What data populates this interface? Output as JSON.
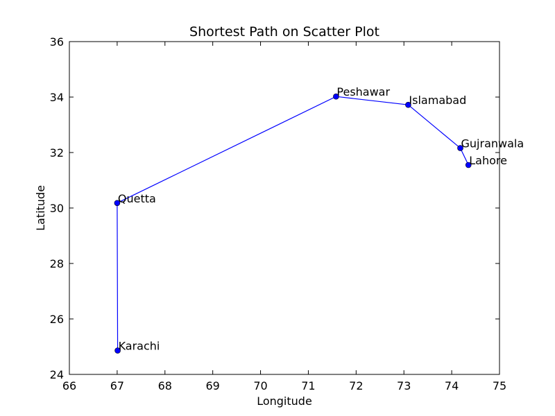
{
  "chart_data": {
    "type": "line",
    "title": "Shortest Path on Scatter Plot",
    "xlabel": "Longitude",
    "ylabel": "Latitude",
    "xlim": [
      66,
      75
    ],
    "ylim": [
      24,
      36
    ],
    "xticks": [
      66,
      67,
      68,
      69,
      70,
      71,
      72,
      73,
      74,
      75
    ],
    "yticks": [
      24,
      26,
      28,
      30,
      32,
      34,
      36
    ],
    "grid": false,
    "line_color": "#0000ff",
    "marker_color": "#0000ff",
    "points": [
      {
        "label": "Karachi",
        "x": 67.01,
        "y": 24.86
      },
      {
        "label": "Quetta",
        "x": 67.0,
        "y": 30.18
      },
      {
        "label": "Peshawar",
        "x": 71.58,
        "y": 34.02
      },
      {
        "label": "Islamabad",
        "x": 73.09,
        "y": 33.72
      },
      {
        "label": "Gujranwala",
        "x": 74.18,
        "y": 32.16
      },
      {
        "label": "Lahore",
        "x": 74.35,
        "y": 31.55
      }
    ]
  }
}
